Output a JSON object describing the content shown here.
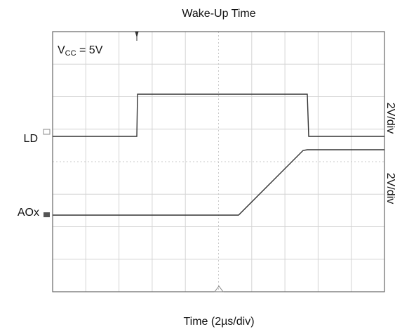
{
  "chart_data": {
    "type": "line",
    "title": "Wake-Up Time",
    "x_label": "Time (2µs/div)",
    "supply_label": [
      "V",
      "CC",
      " = 5V"
    ],
    "trace_labels": [
      "LD",
      "AOx"
    ],
    "scale_labels": [
      "2V/div",
      "2V/div"
    ]
  }
}
